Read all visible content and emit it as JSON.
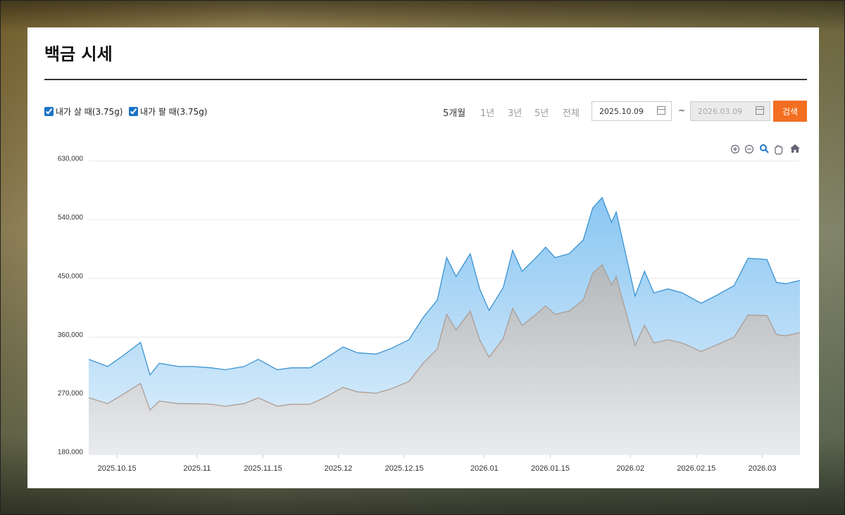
{
  "header": {
    "title": "백금 시세"
  },
  "controls": {
    "periods": [
      "5개월",
      "1년",
      "3년",
      "5년",
      "전체"
    ],
    "separator": "~",
    "search": "검색"
  },
  "chart_data": {
    "type": "area",
    "x": [
      "2025.10.09",
      "2025.10.13",
      "2025.10.16",
      "2025.10.20",
      "2025.10.22",
      "2025.10.24",
      "2025.10.28",
      "2025.10.31",
      "2025.11.04",
      "2025.11.07",
      "2025.11.11",
      "2025.11.14",
      "2025.11.18",
      "2025.11.21",
      "2025.11.25",
      "2025.11.28",
      "2025.12.02",
      "2025.12.05",
      "2025.12.09",
      "2025.12.12",
      "2025.12.16",
      "2025.12.19",
      "2025.12.22",
      "2025.12.24",
      "2025.12.26",
      "2025.12.29",
      "2025.12.31",
      "2026.01.02",
      "2026.01.05",
      "2026.01.07",
      "2026.01.09",
      "2026.01.12",
      "2026.01.14",
      "2026.01.16",
      "2026.01.19",
      "2026.01.22",
      "2026.01.24",
      "2026.01.26",
      "2026.01.28",
      "2026.01.29",
      "2026.01.30",
      "2026.02.02",
      "2026.02.04",
      "2026.02.06",
      "2026.02.09",
      "2026.02.12",
      "2026.02.16",
      "2026.02.19",
      "2026.02.23",
      "2026.02.26",
      "2026.03.02",
      "2026.03.04",
      "2026.03.06",
      "2026.03.09"
    ],
    "xlim": [
      "2025.10.09",
      "2026.03.09"
    ],
    "xticks": [
      "2025.10.15",
      "2025.11",
      "2025.11.15",
      "2025.12",
      "2025.12.15",
      "2026.01",
      "2026.01.15",
      "2026.02",
      "2026.02.15",
      "2026.03"
    ],
    "ylim": [
      180000,
      630000
    ],
    "yticks": [
      {
        "value": 180000,
        "label": "180,000"
      },
      {
        "value": 270000,
        "label": "270,000"
      },
      {
        "value": 360000,
        "label": "360,000"
      },
      {
        "value": 450000,
        "label": "450,000"
      },
      {
        "value": 540000,
        "label": "540,000"
      },
      {
        "value": 630000,
        "label": "630,000"
      }
    ],
    "grid": true,
    "series": [
      {
        "name": "내가 살 때(3.75g)",
        "color": "#3a93d2",
        "fill_colors": [
          "#8ac6f2",
          "#e2f1fc"
        ],
        "values": [
          326000,
          315000,
          330000,
          352000,
          302000,
          320000,
          315000,
          315000,
          313000,
          310000,
          315000,
          326000,
          310000,
          313000,
          313000,
          326000,
          345000,
          336000,
          334000,
          342000,
          356000,
          390000,
          417000,
          482000,
          453000,
          488000,
          434000,
          401000,
          436000,
          493000,
          461000,
          482000,
          498000,
          482000,
          488000,
          509000,
          558000,
          574000,
          536000,
          552000,
          520000,
          423000,
          461000,
          428000,
          434000,
          428000,
          412000,
          423000,
          439000,
          481000,
          479000,
          444000,
          442000,
          447000
        ]
      },
      {
        "name": "내가 팔 때(3.75g)",
        "color": "#ad9c93",
        "fill_colors": [
          "#b4b8bb",
          "#e9ebed"
        ],
        "values": [
          267000,
          258000,
          271000,
          289000,
          248000,
          262000,
          258000,
          258000,
          257000,
          254000,
          258000,
          267000,
          254000,
          257000,
          257000,
          267000,
          283000,
          276000,
          274000,
          280000,
          292000,
          320000,
          342000,
          395000,
          371000,
          400000,
          356000,
          329000,
          358000,
          404000,
          378000,
          395000,
          408000,
          395000,
          400000,
          417000,
          458000,
          471000,
          440000,
          453000,
          426000,
          347000,
          378000,
          351000,
          356000,
          351000,
          338000,
          347000,
          360000,
          394000,
          393000,
          364000,
          362000,
          367000
        ]
      }
    ]
  }
}
